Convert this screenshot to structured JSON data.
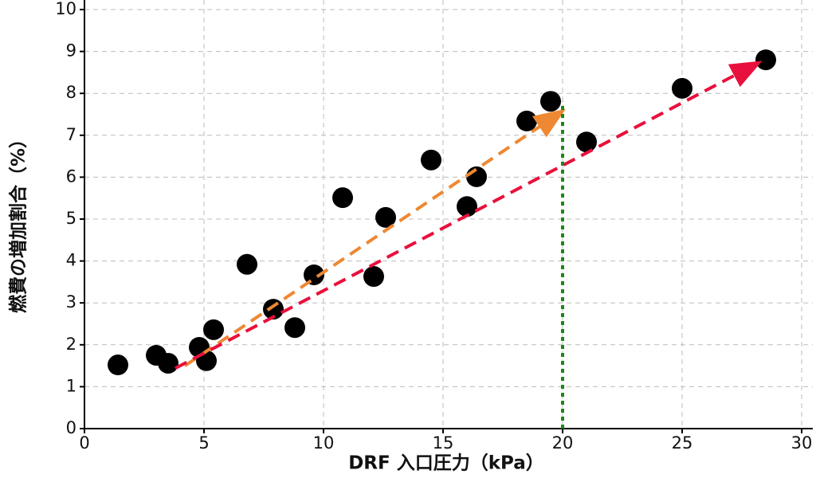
{
  "chart_data": {
    "type": "scatter",
    "x_label": "DRF 入口圧力（kPa）",
    "y_label": "燃費の増加割合（%）",
    "x": [
      1.4,
      3.0,
      3.5,
      4.8,
      5.1,
      5.4,
      6.8,
      7.9,
      8.8,
      9.6,
      10.8,
      12.1,
      12.6,
      14.5,
      16.0,
      16.4,
      18.5,
      19.5,
      21.0,
      25.0,
      28.5
    ],
    "series": [
      {
        "color": "#000000",
        "values": [
          1.52,
          1.75,
          1.56,
          1.94,
          1.62,
          2.36,
          3.92,
          2.85,
          2.41,
          3.67,
          5.51,
          3.63,
          5.04,
          6.41,
          5.3,
          6.01,
          7.34,
          7.81,
          6.84,
          8.12,
          8.8
        ]
      }
    ],
    "arrows": [
      {
        "color": "#ee8833",
        "linestyle": "dashed",
        "head": true,
        "x": [
          4.2,
          19.8
        ],
        "y": [
          1.5,
          7.5
        ]
      },
      {
        "color": "#e8103c",
        "linestyle": "dashed",
        "head": true,
        "x": [
          3.8,
          28.0
        ],
        "y": [
          1.44,
          8.67
        ]
      },
      {
        "color": "#1a8a10",
        "linestyle": "dotted",
        "head": false,
        "x": [
          20,
          20
        ],
        "y": [
          0,
          7.8
        ]
      }
    ],
    "xlim": [
      0,
      30
    ],
    "xticks": [
      0,
      5,
      10,
      15,
      20,
      25,
      30
    ],
    "ylim": [
      0,
      10
    ],
    "yticks": [
      0,
      1,
      2,
      3,
      4,
      5,
      6,
      7,
      8,
      9,
      10
    ],
    "grid": true
  }
}
